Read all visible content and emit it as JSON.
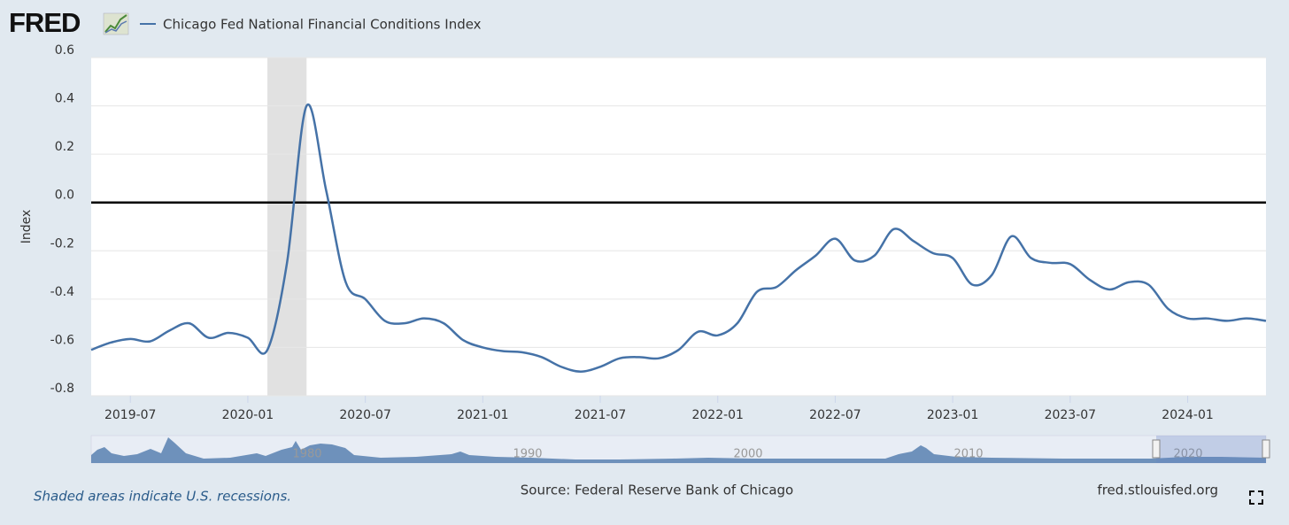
{
  "logo": "FRED",
  "chart_data": {
    "type": "line",
    "y_label": "Index",
    "x": [
      "2019-05",
      "2019-06",
      "2019-07",
      "2019-08",
      "2019-09",
      "2019-10",
      "2019-11",
      "2019-12",
      "2020-01",
      "2020-02",
      "2020-03",
      "2020-04",
      "2020-05",
      "2020-06",
      "2020-07",
      "2020-08",
      "2020-09",
      "2020-10",
      "2020-11",
      "2020-12",
      "2021-01",
      "2021-02",
      "2021-03",
      "2021-04",
      "2021-05",
      "2021-06",
      "2021-07",
      "2021-08",
      "2021-09",
      "2021-10",
      "2021-11",
      "2021-12",
      "2022-01",
      "2022-02",
      "2022-03",
      "2022-04",
      "2022-05",
      "2022-06",
      "2022-07",
      "2022-08",
      "2022-09",
      "2022-10",
      "2022-11",
      "2022-12",
      "2023-01",
      "2023-02",
      "2023-03",
      "2023-04",
      "2023-05",
      "2023-06",
      "2023-07",
      "2023-08",
      "2023-09",
      "2023-10",
      "2023-11",
      "2023-12",
      "2024-01",
      "2024-02",
      "2024-03",
      "2024-04",
      "2024-05"
    ],
    "series": [
      {
        "name": "Chicago Fed National Financial Conditions Index",
        "color": "#4572a7",
        "values": [
          -0.61,
          -0.58,
          -0.565,
          -0.575,
          -0.53,
          -0.5,
          -0.56,
          -0.54,
          -0.56,
          -0.61,
          -0.25,
          0.4,
          0.05,
          -0.33,
          -0.4,
          -0.49,
          -0.5,
          -0.48,
          -0.5,
          -0.57,
          -0.6,
          -0.615,
          -0.62,
          -0.64,
          -0.68,
          -0.7,
          -0.68,
          -0.645,
          -0.64,
          -0.645,
          -0.61,
          -0.535,
          -0.55,
          -0.5,
          -0.37,
          -0.35,
          -0.28,
          -0.22,
          -0.15,
          -0.24,
          -0.22,
          -0.11,
          -0.16,
          -0.21,
          -0.23,
          -0.34,
          -0.3,
          -0.14,
          -0.23,
          -0.25,
          -0.255,
          -0.32,
          -0.36,
          -0.33,
          -0.34,
          -0.44,
          -0.48,
          -0.48,
          -0.49,
          -0.48,
          -0.49
        ]
      }
    ],
    "xlim": [
      "2019-05",
      "2024-05"
    ],
    "xticks": [
      "2019-07",
      "2020-01",
      "2020-07",
      "2021-01",
      "2021-07",
      "2022-01",
      "2022-07",
      "2023-01",
      "2023-07",
      "2024-01"
    ],
    "ylim": [
      -0.8,
      0.6
    ],
    "yticks": [
      0.6,
      0.4,
      0.2,
      {
        "value": 0,
        "label": "0.0"
      },
      -0.2,
      -0.4,
      -0.6,
      -0.8
    ],
    "grid": true,
    "zero_line": true,
    "recession": [
      "2020-02",
      "2020-04"
    ],
    "recession_note": "Shaded areas indicate U.S. recessions.",
    "source": "Source: Federal Reserve Bank of Chicago",
    "site": "fred.stlouisfed.org"
  },
  "navigator": {
    "labels": [
      "1980",
      "1990",
      "2000",
      "2010",
      "2020"
    ]
  }
}
